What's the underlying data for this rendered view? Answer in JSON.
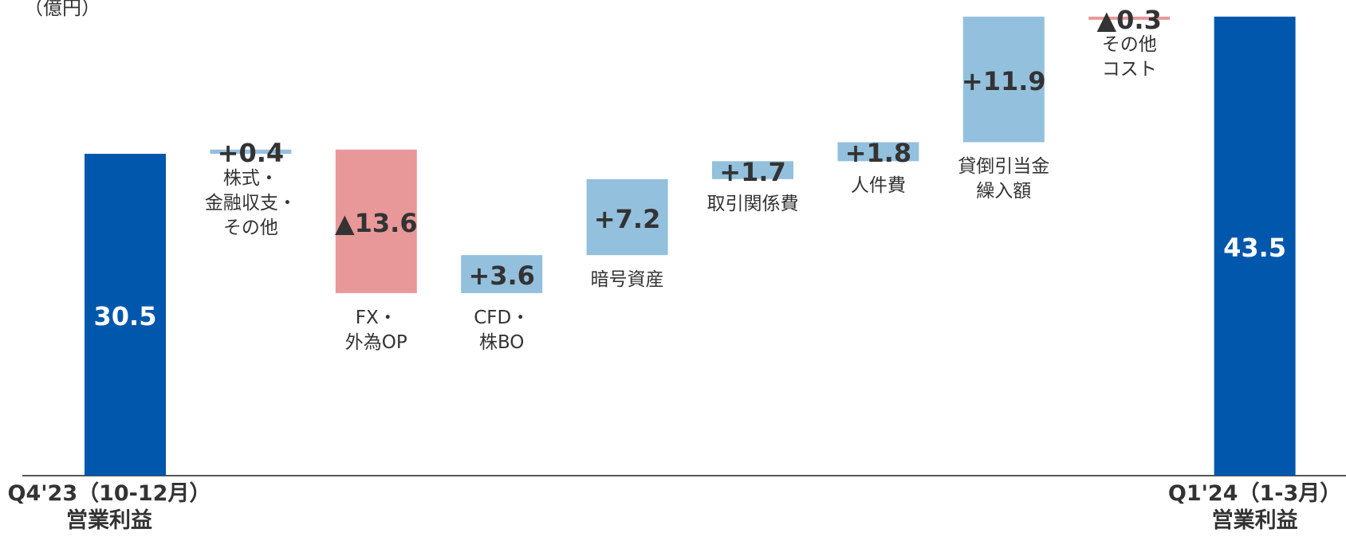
{
  "chart_data": {
    "type": "waterfall",
    "unit": "（億円）",
    "categories": [
      "Q4'23（10-12月）\n営業利益",
      "株式・\n金融収支・\nその他",
      "FX・\n外為OP",
      "CFD・\n株BO",
      "暗号資産",
      "取引関係費",
      "人件費",
      "貸倒引当金\n繰入額",
      "その他\nコスト",
      "Q1'24（1-3月）\n営業利益"
    ],
    "values": [
      30.5,
      0.4,
      -13.6,
      3.6,
      7.2,
      1.7,
      1.8,
      11.9,
      -0.3,
      43.5
    ],
    "value_labels": [
      "30.5",
      "+0.4",
      "▲13.6",
      "+3.6",
      "+7.2",
      "+1.7",
      "+1.8",
      "+11.9",
      "▲0.3",
      "43.5"
    ],
    "measure": [
      "total",
      "relative",
      "relative",
      "relative",
      "relative",
      "relative",
      "relative",
      "relative",
      "relative",
      "total"
    ],
    "colors": {
      "total": "#0057ab",
      "increase": "#93c0dd",
      "decrease": "#e89898"
    },
    "ylim": [
      0,
      45
    ]
  }
}
